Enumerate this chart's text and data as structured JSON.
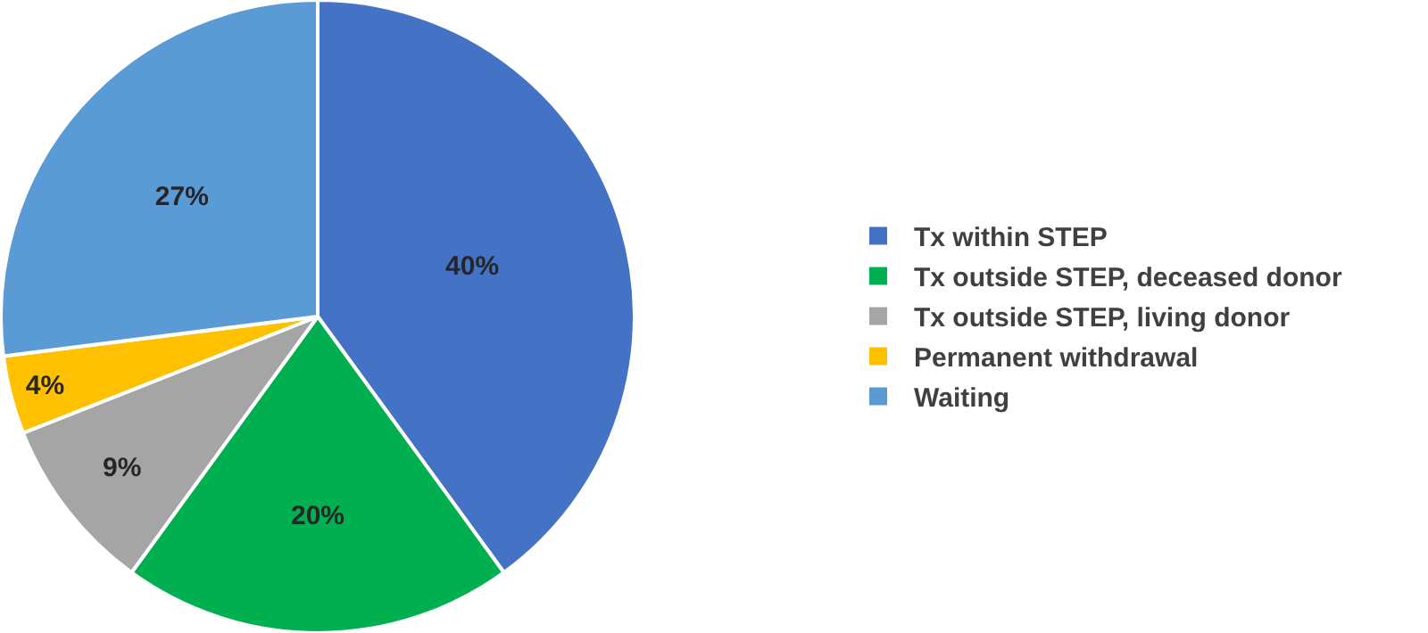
{
  "chart_data": {
    "type": "pie",
    "categories": [
      "Tx within STEP",
      "Tx outside STEP, deceased donor",
      "Tx outside STEP, living donor",
      "Permanent withdrawal",
      "Waiting"
    ],
    "values": [
      40,
      20,
      9,
      4,
      27
    ],
    "value_labels": [
      "40%",
      "20%",
      "9%",
      "4%",
      "27%"
    ],
    "colors": [
      "#4472c4",
      "#00b050",
      "#a5a5a5",
      "#ffc000",
      "#5b9bd5"
    ],
    "legend": "right"
  }
}
